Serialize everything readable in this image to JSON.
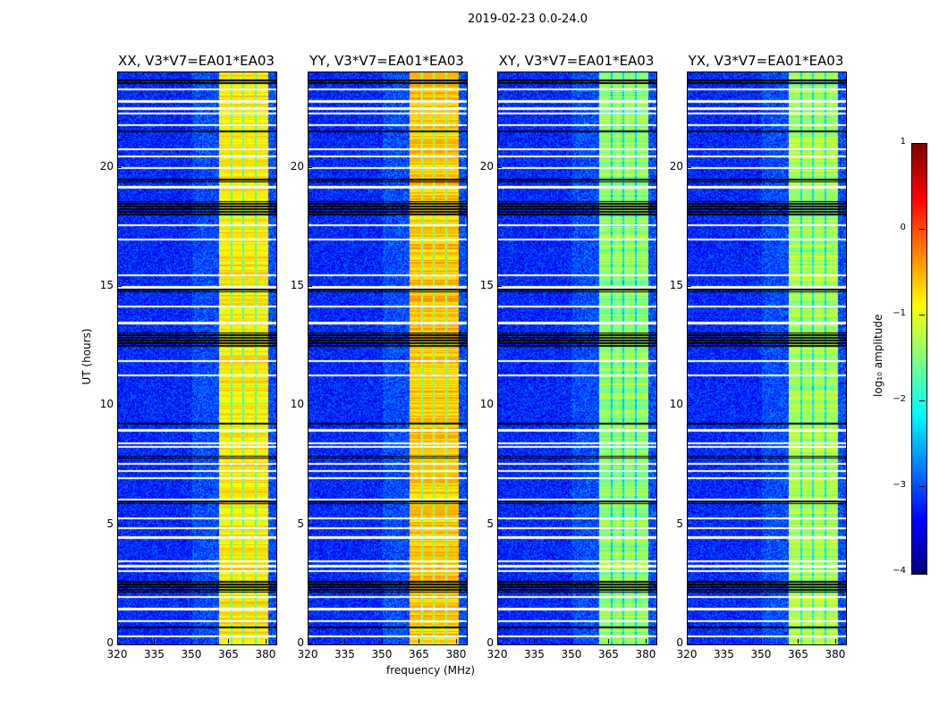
{
  "chart_data": {
    "type": "heatmap",
    "title": "2019-02-23 0.0-24.0",
    "xlabel": "frequency (MHz)",
    "ylabel": "UT (hours)",
    "xlim": [
      320,
      384
    ],
    "ylim": [
      0,
      24
    ],
    "xticks": [
      "320",
      "335",
      "350",
      "365",
      "380"
    ],
    "xtick_values": [
      320,
      335,
      350,
      365,
      380
    ],
    "yticks": [
      "0",
      "5",
      "10",
      "15",
      "20"
    ],
    "ytick_values": [
      0,
      5,
      10,
      15,
      20
    ],
    "panels": [
      {
        "title": "XX, V3*V7=EA01*EA03",
        "background_level": -3.2,
        "band_level": -0.8
      },
      {
        "title": "YY, V3*V7=EA01*EA03",
        "background_level": -3.2,
        "band_level": -0.6
      },
      {
        "title": "XY, V3*V7=EA01*EA03",
        "background_level": -3.2,
        "band_level": -1.4
      },
      {
        "title": "YX, V3*V7=EA01*EA03",
        "background_level": -3.2,
        "band_level": -1.3
      }
    ],
    "bright_band_mhz": [
      360.7,
      380.4
    ],
    "band_stripes_mhz": [
      365.6,
      370.5,
      375.4
    ],
    "flagged_white_hours": [
      0.35,
      1.0,
      1.5,
      2.0,
      3.1,
      3.3,
      3.5,
      4.5,
      4.9,
      5.3,
      6.1,
      7.0,
      7.3,
      7.6,
      8.3,
      8.45,
      9.0,
      11.3,
      11.9,
      13.5,
      14.2,
      15.0,
      15.5,
      17.0,
      17.6,
      19.2,
      20.0,
      20.5,
      20.8,
      21.8,
      22.3,
      22.5,
      22.8,
      23.3
    ],
    "flagged_black_hours": [
      [
        0.7,
        0.8
      ],
      [
        2.2,
        2.7
      ],
      [
        5.9,
        6.05
      ],
      [
        7.8,
        7.95
      ],
      [
        9.2,
        9.35
      ],
      [
        12.5,
        13.1
      ],
      [
        14.8,
        14.95
      ],
      [
        18.0,
        18.6
      ],
      [
        19.4,
        19.55
      ],
      [
        21.5,
        21.6
      ],
      [
        23.55,
        23.75
      ]
    ],
    "colorbar": {
      "label": "log₁₀ amplitude",
      "range": [
        -4,
        1
      ],
      "ticks": [
        "1",
        "0",
        "−1",
        "−2",
        "−3",
        "−4"
      ],
      "tick_values": [
        1,
        0,
        -1,
        -2,
        -3,
        -4
      ],
      "colormap": "jet"
    }
  }
}
